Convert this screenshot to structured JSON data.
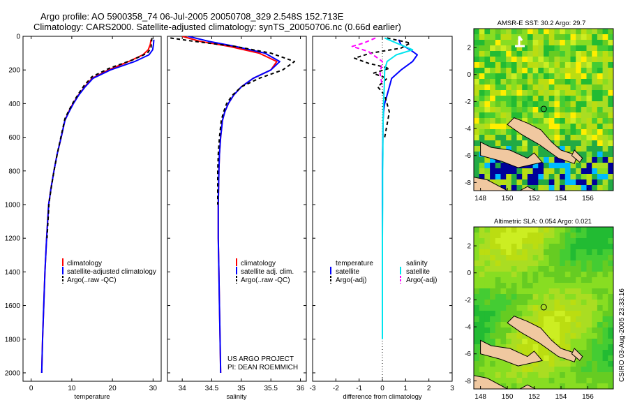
{
  "header": {
    "line1": "Argo profile: AO 5900358_74 06-Jul-2005 20050708_329 2.548S 152.713E",
    "line2": "Climatology: CARS2000. Satellite-adjusted climatology: synTS_20050706.nc (0.66d earlier)"
  },
  "side_label": "CSIRO 03-Aug-2005 23:33:16",
  "project_note": {
    "line1": "US ARGO PROJECT",
    "line2": "PI: DEAN ROEMMICH"
  },
  "colors": {
    "climatology": "#ff0000",
    "satellite": "#0000ff",
    "argo": "#000000",
    "salinity_satellite": "#00e5ee",
    "salinity_argo": "#ff00ff",
    "land": "#f0c8a0",
    "map_low": "#22bb33",
    "map_mid": "#aadd22",
    "map_high": "#ffee00",
    "map_cold": "#000099"
  },
  "chart_data": [
    {
      "id": "temperature",
      "type": "line",
      "title": "",
      "xlabel": "temperature",
      "ylabel": "",
      "xlim": [
        -2,
        32
      ],
      "ylim": [
        2050,
        0
      ],
      "xticks": [
        0,
        10,
        20,
        30
      ],
      "yticks": [
        0,
        200,
        400,
        600,
        800,
        1000,
        1200,
        1400,
        1600,
        1800,
        2000
      ],
      "legend": [
        "climatology",
        "satellite-adjusted climatology",
        "Argo(..raw -QC)"
      ],
      "series": [
        {
          "name": "climatology",
          "color": "#ff0000",
          "dash": "",
          "x": [
            29.5,
            29.3,
            28.8,
            27.5,
            24,
            19,
            15,
            13.2,
            11.6,
            10.3,
            9.2,
            8.3,
            7.4,
            6.4,
            5.6,
            4.9,
            4.3,
            3.8,
            3.4,
            3.1,
            2.8,
            2.6
          ],
          "y": [
            20,
            50,
            80,
            110,
            150,
            200,
            250,
            300,
            350,
            400,
            450,
            500,
            600,
            700,
            800,
            900,
            1000,
            1200,
            1400,
            1600,
            1800,
            2000
          ]
        },
        {
          "name": "satellite-adjusted climatology",
          "color": "#0000ff",
          "dash": "",
          "x": [
            30.2,
            30.1,
            29.9,
            29.0,
            25.5,
            19.5,
            15.2,
            13.3,
            11.7,
            10.4,
            9.3,
            8.3,
            7.4,
            6.4,
            5.6,
            4.9,
            4.3,
            3.8,
            3.4,
            3.1,
            2.8,
            2.6
          ],
          "y": [
            20,
            50,
            80,
            110,
            150,
            200,
            250,
            300,
            350,
            400,
            450,
            500,
            600,
            700,
            800,
            900,
            1000,
            1200,
            1400,
            1600,
            1800,
            2000
          ]
        },
        {
          "name": "Argo(..raw -QC)",
          "color": "#000000",
          "dash": "5,4",
          "x": [
            29.7,
            29.6,
            29.5,
            28.6,
            25,
            19.2,
            15,
            13.1,
            11.7,
            10.4,
            9.3,
            8.3,
            7.4,
            6.5,
            5.7,
            5.0,
            4.4,
            3.9
          ],
          "y": [
            10,
            40,
            70,
            100,
            140,
            190,
            240,
            290,
            340,
            390,
            440,
            490,
            590,
            690,
            790,
            890,
            990,
            1200
          ]
        }
      ]
    },
    {
      "id": "salinity",
      "type": "line",
      "title": "",
      "xlabel": "salinity",
      "ylabel": "",
      "xlim": [
        33.75,
        36.1
      ],
      "ylim": [
        2050,
        0
      ],
      "xticks": [
        34,
        34.5,
        35,
        35.5,
        36
      ],
      "xticklabels": [
        "34",
        "34.5",
        "35",
        "35.5",
        "36"
      ],
      "legend": [
        "climatology",
        "satellite adj. clim.",
        "Argo(..raw -QC)"
      ],
      "series": [
        {
          "name": "climatology",
          "color": "#ff0000",
          "dash": "",
          "x": [
            34.0,
            34.3,
            34.8,
            35.3,
            35.6,
            35.5,
            35.2,
            35.0,
            34.87,
            34.78,
            34.72,
            34.68,
            34.65,
            34.63,
            34.62,
            34.61,
            34.61,
            34.62,
            34.63,
            34.64,
            34.65
          ],
          "y": [
            0,
            30,
            60,
            100,
            150,
            200,
            250,
            300,
            350,
            400,
            450,
            500,
            600,
            700,
            800,
            1000,
            1200,
            1400,
            1600,
            1800,
            2000
          ]
        },
        {
          "name": "satellite adj. clim.",
          "color": "#0000ff",
          "dash": "",
          "x": [
            34.1,
            34.45,
            34.9,
            35.4,
            35.65,
            35.5,
            35.2,
            35.0,
            34.87,
            34.78,
            34.72,
            34.68,
            34.65,
            34.63,
            34.62,
            34.61,
            34.61,
            34.62,
            34.63,
            34.64,
            34.65
          ],
          "y": [
            0,
            30,
            60,
            100,
            150,
            200,
            250,
            300,
            350,
            400,
            450,
            500,
            600,
            700,
            800,
            1000,
            1200,
            1400,
            1600,
            1800,
            2000
          ]
        },
        {
          "name": "Argo(..raw -QC)",
          "color": "#000000",
          "dash": "5,4",
          "x": [
            33.8,
            34.2,
            34.9,
            35.5,
            35.9,
            35.7,
            35.3,
            35.0,
            34.85,
            34.75,
            34.7,
            34.66,
            34.63,
            34.61,
            34.6,
            34.6
          ],
          "y": [
            10,
            30,
            60,
            100,
            150,
            200,
            250,
            300,
            350,
            400,
            450,
            500,
            600,
            700,
            800,
            1000
          ]
        }
      ]
    },
    {
      "id": "difference",
      "type": "line",
      "title": "",
      "xlabel": "difference from climatology",
      "ylabel": "",
      "xlim": [
        -3,
        3
      ],
      "ylim": [
        2050,
        0
      ],
      "xticks": [
        -3,
        -2,
        -1,
        0,
        1,
        2,
        3
      ],
      "legend_left_title": "temperature",
      "legend_left": [
        "satellite",
        "Argo(-adj)"
      ],
      "legend_right_title": "salinity",
      "legend_right": [
        "satellite",
        "Argo(-adj)"
      ],
      "series": [
        {
          "name": "temperature satellite",
          "color": "#0000ff",
          "dash": "",
          "x": [
            0.7,
            0.8,
            1.2,
            1.5,
            1.3,
            0.8,
            0.4,
            0.3,
            0.2,
            0.1,
            0.05,
            0.03,
            0.02,
            0.01,
            0.0,
            0.0,
            0.0,
            0.0,
            0.0
          ],
          "y": [
            20,
            50,
            80,
            110,
            150,
            200,
            250,
            300,
            350,
            400,
            450,
            500,
            600,
            700,
            800,
            1000,
            1200,
            1400,
            1600
          ]
        },
        {
          "name": "temperature Argo(-adj)",
          "color": "#000000",
          "dash": "5,4",
          "x": [
            0.2,
            1.2,
            0.8,
            -0.5,
            -1.2,
            -0.6,
            0.3,
            -0.4,
            0.2,
            -0.2,
            0.1,
            0.3,
            0.1
          ],
          "y": [
            10,
            40,
            70,
            100,
            130,
            160,
            190,
            220,
            250,
            300,
            350,
            450,
            600
          ]
        },
        {
          "name": "salinity satellite",
          "color": "#00e5ee",
          "dash": "",
          "x": [
            0.1,
            0.6,
            1.3,
            0.6,
            0.2,
            0.1,
            0.08,
            0.05,
            0.03,
            0.02,
            0.02,
            0.01,
            0.01,
            0.0,
            0.0,
            0.0,
            0.0
          ],
          "y": [
            10,
            40,
            80,
            110,
            150,
            200,
            300,
            400,
            500,
            600,
            700,
            800,
            1000,
            1200,
            1400,
            1600,
            1800
          ]
        },
        {
          "name": "salinity Argo(-adj)",
          "color": "#ff00ff",
          "dash": "6,4",
          "x": [
            -0.3,
            -0.8,
            -1.3,
            -0.6,
            0.0,
            -0.1,
            0.0
          ],
          "y": [
            10,
            40,
            60,
            90,
            150,
            220,
            300
          ]
        }
      ]
    },
    {
      "id": "sst-map",
      "type": "heatmap",
      "title": "AMSR-E SST: 30.2 Argo: 29.7",
      "xlim": [
        147.5,
        157.9
      ],
      "ylim": [
        -8.6,
        3.4
      ],
      "xticks": [
        148,
        150,
        152,
        154,
        156
      ],
      "yticks": [
        2,
        0,
        -2,
        -4,
        -6,
        -8
      ],
      "marker": {
        "lon": 152.713,
        "lat": -2.548
      }
    },
    {
      "id": "sla-map",
      "type": "heatmap",
      "title": "Altimetric SLA: 0.054 Argo: 0.021",
      "xlim": [
        147.5,
        157.9
      ],
      "ylim": [
        -8.6,
        3.4
      ],
      "xticks": [
        148,
        150,
        152,
        154,
        156
      ],
      "yticks": [
        2,
        0,
        -2,
        -4,
        -6,
        -8
      ],
      "marker": {
        "lon": 152.713,
        "lat": -2.548
      }
    }
  ]
}
